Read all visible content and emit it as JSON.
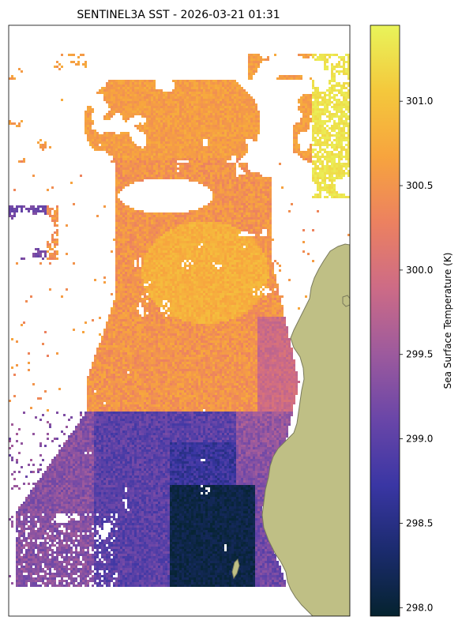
{
  "chart_data": {
    "type": "heatmap",
    "title": "SENTINEL3A SST - 2026-03-21 01:31",
    "colorbar": {
      "label": "Sea Surface Temperature (K)",
      "range": [
        297.95,
        301.45
      ],
      "ticks": [
        298.0,
        298.5,
        299.0,
        299.5,
        300.0,
        300.5,
        301.0
      ],
      "tick_labels": [
        "298.0",
        "298.5",
        "299.0",
        "299.5",
        "300.0",
        "300.5",
        "301.0"
      ],
      "colormap": "thermal",
      "colors": [
        "#05232f",
        "#1b2b6e",
        "#3a36a4",
        "#6a46a8",
        "#9d5a9d",
        "#cd6b86",
        "#ec8160",
        "#f7a43e",
        "#f4c83c",
        "#e9f45a"
      ]
    },
    "map": {
      "land_color": "#bfbf85",
      "land_edge_color": "#7a7a5c",
      "missing_data": "white",
      "axes_ticks": "none"
    },
    "regions": [
      {
        "area": "north-east patch",
        "sst_k": 301.3
      },
      {
        "area": "north central plume",
        "sst_k": 300.6
      },
      {
        "area": "central bulge",
        "sst_k": 300.8
      },
      {
        "area": "nearshore strip",
        "sst_k": 299.9
      },
      {
        "area": "southern band",
        "sst_k": 299.0
      },
      {
        "area": "south-central cold pool",
        "sst_k": 298.1
      }
    ]
  }
}
